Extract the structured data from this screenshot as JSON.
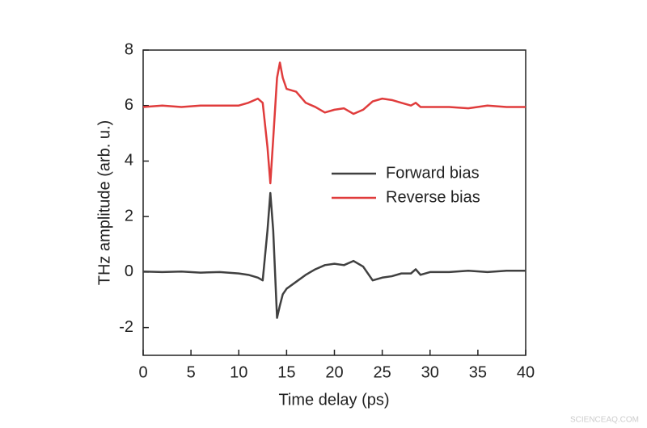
{
  "chart_data": {
    "type": "line",
    "xlabel": "Time delay (ps)",
    "ylabel": "THz amplitude (arb. u.)",
    "x": [
      0,
      2,
      4,
      6,
      8,
      10,
      11,
      12,
      12.5,
      13,
      13.3,
      13.6,
      14,
      14.3,
      14.6,
      15,
      16,
      17,
      18,
      19,
      20,
      21,
      22,
      23,
      24,
      25,
      26,
      27,
      28,
      28.5,
      29,
      30,
      32,
      34,
      36,
      38,
      40
    ],
    "series": [
      {
        "name": "Forward bias",
        "color": "#404040",
        "values": [
          0.02,
          0,
          0.02,
          -0.02,
          0,
          -0.05,
          -0.1,
          -0.2,
          -0.3,
          1.5,
          2.85,
          1.5,
          -1.65,
          -1.2,
          -0.8,
          -0.6,
          -0.35,
          -0.1,
          0.1,
          0.25,
          0.3,
          0.25,
          0.4,
          0.2,
          -0.3,
          -0.2,
          -0.15,
          -0.05,
          -0.05,
          0.1,
          -0.1,
          0,
          0,
          0.05,
          0,
          0.05,
          0.05
        ]
      },
      {
        "name": "Reverse bias",
        "color": "#e03c3c",
        "values": [
          5.95,
          6.0,
          5.95,
          6.0,
          6.0,
          6.0,
          6.1,
          6.25,
          6.1,
          4.5,
          3.2,
          4.8,
          7.0,
          7.55,
          7.0,
          6.6,
          6.5,
          6.1,
          5.95,
          5.75,
          5.85,
          5.9,
          5.7,
          5.85,
          6.15,
          6.25,
          6.2,
          6.1,
          6.0,
          6.1,
          5.95,
          5.95,
          5.95,
          5.9,
          6.0,
          5.95,
          5.95
        ]
      }
    ],
    "xlim": [
      0,
      40
    ],
    "xticks": [
      0,
      5,
      10,
      15,
      20,
      25,
      30,
      35,
      40
    ],
    "ylim": [
      -3,
      8
    ],
    "yticks": [
      -2,
      0,
      2,
      4,
      6,
      8
    ],
    "legend": "center-right"
  },
  "watermark": "SCIENCEAQ.COM"
}
